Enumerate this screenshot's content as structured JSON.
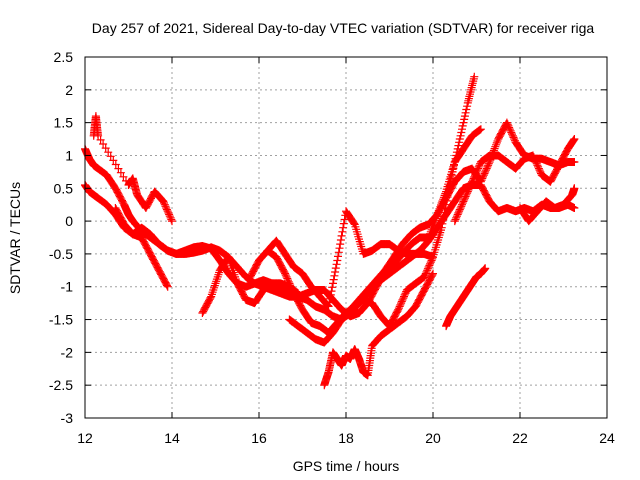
{
  "chart_data": {
    "type": "scatter",
    "title": "Day 257 of 2021, Sidereal Day-to-day VTEC variation (SDTVAR) for receiver riga",
    "xlabel": "GPS time / hours",
    "ylabel": "SDTVAR / TECUs",
    "xlim": [
      12,
      24
    ],
    "ylim": [
      -3,
      2.5
    ],
    "xticks": [
      "12",
      "14",
      "16",
      "18",
      "20",
      "22",
      "24"
    ],
    "xtick_values": [
      12,
      14,
      16,
      18,
      20,
      22,
      24
    ],
    "yticks": [
      "2.5",
      "2",
      "1.5",
      "1",
      "0.5",
      "0",
      "-0.5",
      "-1",
      "-1.5",
      "-2",
      "-2.5",
      "-3"
    ],
    "ytick_values": [
      2.5,
      2,
      1.5,
      1,
      0.5,
      0,
      -0.5,
      -1,
      -1.5,
      -2,
      -2.5,
      -3
    ],
    "grid": true,
    "marker": "+",
    "color": "#ff0000",
    "series": [
      {
        "x": [
          12.0,
          12.1,
          12.2,
          12.3,
          12.5,
          12.7,
          12.9,
          13.0,
          13.1,
          13.3,
          13.5,
          13.7,
          13.9,
          14.1,
          14.3,
          14.5,
          14.7,
          14.9,
          15.1,
          15.3,
          15.5,
          15.7,
          15.9,
          16.1,
          16.3,
          16.5,
          16.7,
          16.9,
          17.1,
          17.3,
          17.5,
          17.7,
          17.9,
          18.1,
          18.3,
          18.5,
          18.7,
          18.9,
          19.1,
          19.3,
          19.5,
          19.7,
          19.9,
          20.1,
          20.3,
          20.5,
          20.7,
          20.9,
          21.1,
          21.3,
          21.5,
          21.7,
          21.9,
          22.1,
          22.3,
          22.5,
          22.7,
          22.9,
          23.1,
          23.25
        ],
        "y": [
          1.1,
          0.95,
          0.85,
          0.8,
          0.7,
          0.5,
          0.25,
          0.1,
          0.0,
          -0.15,
          -0.25,
          -0.35,
          -0.45,
          -0.5,
          -0.5,
          -0.48,
          -0.45,
          -0.4,
          -0.45,
          -0.55,
          -0.7,
          -0.85,
          -0.95,
          -1.0,
          -1.05,
          -1.1,
          -1.15,
          -1.15,
          -1.1,
          -1.05,
          -1.05,
          -1.2,
          -1.35,
          -1.45,
          -1.4,
          -1.25,
          -1.0,
          -0.75,
          -0.55,
          -0.35,
          -0.2,
          -0.1,
          -0.05,
          0.1,
          0.35,
          0.6,
          0.75,
          0.8,
          0.6,
          0.9,
          1.25,
          1.5,
          1.2,
          1.0,
          0.95,
          0.95,
          0.9,
          0.85,
          0.9,
          0.9
        ]
      },
      {
        "x": [
          12.0,
          12.1,
          12.2,
          12.3,
          12.5,
          12.7,
          12.9,
          13.1,
          13.3,
          13.5,
          13.7,
          13.9,
          14.1,
          14.3,
          14.5,
          14.7,
          14.9,
          15.1,
          15.3,
          15.5,
          15.7,
          15.9,
          16.1,
          16.3,
          16.5,
          16.7,
          16.9,
          17.1,
          17.3,
          17.5,
          17.7,
          17.9,
          18.1,
          18.3,
          18.5,
          18.7,
          18.9,
          19.1,
          19.3,
          19.5,
          19.7,
          19.9,
          20.1,
          20.3,
          20.5,
          20.7,
          20.9,
          21.1,
          21.3,
          21.5,
          21.7,
          21.9,
          22.1,
          22.3,
          22.5,
          22.7,
          22.9,
          23.1,
          23.25
        ],
        "y": [
          0.55,
          0.45,
          0.4,
          0.35,
          0.25,
          0.1,
          -0.1,
          -0.2,
          -0.1,
          -0.2,
          -0.35,
          -0.45,
          -0.5,
          -0.45,
          -0.4,
          -0.38,
          -0.42,
          -0.6,
          -0.8,
          -0.95,
          -1.0,
          -0.95,
          -0.9,
          -0.95,
          -1.05,
          -1.1,
          -1.15,
          -1.2,
          -1.3,
          -1.35,
          -1.45,
          -1.5,
          -1.4,
          -1.25,
          -1.1,
          -0.95,
          -0.85,
          -0.75,
          -0.65,
          -0.55,
          -0.45,
          -0.3,
          -0.1,
          0.1,
          0.3,
          0.5,
          0.55,
          0.55,
          0.3,
          0.15,
          0.2,
          0.15,
          0.2,
          0.15,
          0.25,
          0.2,
          0.2,
          0.25,
          0.2
        ]
      },
      {
        "x": [
          12.2,
          12.25,
          12.3,
          13.0,
          13.1,
          13.2,
          13.4,
          13.6,
          13.8,
          14.0
        ],
        "y": [
          1.3,
          1.6,
          1.3,
          0.55,
          0.65,
          0.4,
          0.2,
          0.45,
          0.3,
          0.0
        ]
      },
      {
        "x": [
          12.7,
          12.9,
          13.1,
          13.3,
          13.5,
          13.7,
          13.9
        ],
        "y": [
          0.2,
          -0.05,
          -0.2,
          -0.25,
          -0.5,
          -0.75,
          -1.0
        ]
      },
      {
        "x": [
          14.7,
          14.9,
          15.1,
          15.3,
          15.5,
          15.7,
          15.9,
          16.1,
          16.3,
          16.5,
          16.7,
          16.9
        ],
        "y": [
          -1.4,
          -1.15,
          -0.75,
          -0.55,
          -0.95,
          -1.2,
          -1.25,
          -1.05,
          -0.95,
          -0.95,
          -1.0,
          -1.1
        ]
      },
      {
        "x": [
          15.8,
          16.0,
          16.2,
          16.4,
          16.6,
          16.8,
          17.0,
          17.2,
          17.4,
          17.6,
          17.8,
          18.0,
          18.2,
          18.4,
          18.6,
          18.8,
          19.0,
          19.2,
          19.4,
          19.6,
          19.8,
          20.0,
          20.2,
          20.4,
          20.6,
          20.8,
          20.95
        ],
        "y": [
          -0.85,
          -0.6,
          -0.45,
          -0.55,
          -0.8,
          -1.1,
          -1.35,
          -1.55,
          -1.6,
          -1.7,
          -1.55,
          -1.4,
          -1.3,
          -1.2,
          -1.25,
          -1.45,
          -1.6,
          -1.35,
          -1.05,
          -0.95,
          -0.85,
          -0.55,
          -0.1,
          0.6,
          1.2,
          1.8,
          2.2
        ]
      },
      {
        "x": [
          16.2,
          16.4,
          16.6,
          16.8,
          17.0,
          17.2,
          17.4,
          17.6,
          17.8,
          18.0,
          18.2,
          18.4,
          18.6,
          18.8,
          19.0,
          19.2,
          19.4,
          19.6,
          19.8,
          20.0
        ],
        "y": [
          -0.45,
          -0.3,
          -0.5,
          -0.7,
          -0.8,
          -1.0,
          -1.15,
          -1.3,
          -0.6,
          0.15,
          -0.05,
          -0.5,
          -0.45,
          -0.35,
          -0.35,
          -0.45,
          -0.5,
          -0.5,
          -0.5,
          -0.55
        ]
      },
      {
        "x": [
          16.7,
          16.9,
          17.1,
          17.3,
          17.5,
          17.7,
          17.9,
          18.1,
          18.3,
          18.5,
          18.7,
          18.9,
          19.1,
          19.3,
          19.5,
          19.7,
          19.9,
          20.1,
          20.3,
          20.5,
          20.7,
          20.9,
          21.1
        ],
        "y": [
          -1.5,
          -1.6,
          -1.7,
          -1.8,
          -1.85,
          -1.7,
          -1.5,
          -1.35,
          -1.2,
          -1.05,
          -0.9,
          -0.75,
          -0.65,
          -0.5,
          -0.35,
          -0.25,
          -0.25,
          0.1,
          0.45,
          0.9,
          1.1,
          1.3,
          1.4
        ]
      },
      {
        "x": [
          17.5,
          17.6,
          17.7,
          17.8,
          17.9,
          18.0,
          18.1,
          18.2,
          18.3,
          18.4,
          18.5,
          18.6,
          18.8,
          19.0,
          19.2,
          19.4,
          19.6,
          19.8,
          20.0
        ],
        "y": [
          -2.5,
          -2.3,
          -2.0,
          -2.1,
          -2.2,
          -2.05,
          -2.1,
          -1.95,
          -2.1,
          -2.3,
          -2.35,
          -1.9,
          -1.75,
          -1.65,
          -1.55,
          -1.45,
          -1.3,
          -1.05,
          -0.8
        ]
      },
      {
        "x": [
          20.3,
          20.4,
          20.5,
          20.6,
          20.7,
          20.8,
          20.9,
          21.0,
          21.1,
          21.2
        ],
        "y": [
          -1.6,
          -1.45,
          -1.35,
          -1.25,
          -1.15,
          -1.05,
          -0.95,
          -0.85,
          -0.8,
          -0.72
        ]
      },
      {
        "x": [
          20.5,
          20.7,
          20.9,
          21.1,
          21.3,
          21.5,
          21.7,
          21.9,
          22.1,
          22.3,
          22.5,
          22.7,
          22.9,
          23.1,
          23.25
        ],
        "y": [
          0.0,
          0.3,
          0.6,
          0.9,
          1.0,
          1.0,
          0.9,
          0.8,
          0.95,
          1.0,
          0.7,
          0.6,
          0.85,
          1.1,
          1.25
        ]
      },
      {
        "x": [
          22.0,
          22.2,
          22.4,
          22.6,
          22.8,
          23.0,
          23.2,
          23.25
        ],
        "y": [
          0.2,
          0.0,
          0.15,
          0.3,
          0.2,
          0.25,
          0.4,
          0.5
        ]
      }
    ]
  }
}
